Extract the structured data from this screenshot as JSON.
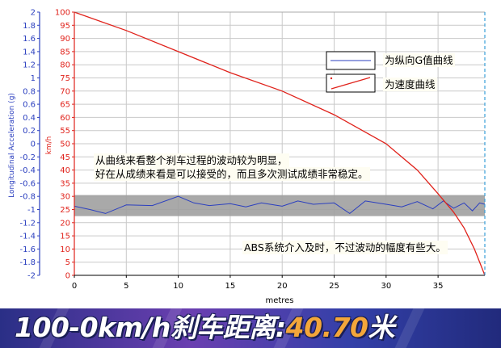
{
  "chart_data": {
    "type": "line",
    "xlabel": "metres",
    "y_left_label": "Longitudinal Acceleration (g)",
    "y_right_label": "km/h",
    "x_ticks": [
      0,
      5,
      10,
      15,
      20,
      25,
      30,
      35
    ],
    "xlim": [
      0,
      39.5
    ],
    "y_left_ticks": [
      "2",
      "1.8",
      "1.6",
      "1.4",
      "1.2",
      "1",
      "0.8",
      "0.6",
      "0.4",
      "0.2",
      "0",
      "-0.2",
      "-0.4",
      "-0.6",
      "-0.8",
      "-1",
      "-1.2",
      "-1.4",
      "-1.6",
      "-1.8",
      "-2"
    ],
    "y_left_lim": [
      -2,
      2
    ],
    "y_right_ticks": [
      "100",
      "95",
      "90",
      "85",
      "80",
      "75",
      "70",
      "65",
      "60",
      "55",
      "50",
      "45",
      "40",
      "35",
      "30",
      "25",
      "20",
      "15",
      "10",
      "5",
      "0"
    ],
    "y_right_lim": [
      0,
      100
    ],
    "band": {
      "y_from": -1.1,
      "y_to": -0.78,
      "color": "#a0a0a0"
    },
    "series": [
      {
        "name": "为纵向G值曲线",
        "axis": "left",
        "color": "#2b3fbf",
        "x": [
          0,
          1.5,
          3,
          5,
          7.5,
          10,
          11.5,
          13,
          15,
          16.5,
          18,
          20,
          21.5,
          23,
          25,
          26.5,
          28,
          30,
          31.5,
          33,
          34.5,
          35.5,
          36.5,
          37.5,
          38.3,
          39,
          39.5
        ],
        "y": [
          -0.95,
          -1.0,
          -1.06,
          -0.93,
          -0.94,
          -0.8,
          -0.9,
          -0.94,
          -0.91,
          -0.96,
          -0.9,
          -0.95,
          -0.87,
          -0.92,
          -0.9,
          -1.06,
          -0.87,
          -0.92,
          -0.96,
          -0.88,
          -0.99,
          -0.87,
          -0.98,
          -0.9,
          -1.02,
          -0.9,
          -0.92
        ]
      },
      {
        "name": "为速度曲线",
        "axis": "right",
        "color": "#e0221b",
        "x": [
          0,
          5,
          10,
          15,
          20,
          25,
          30,
          33,
          35,
          36.5,
          37.5,
          38.5,
          39,
          39.5
        ],
        "y": [
          100,
          93,
          85,
          77,
          70,
          61,
          50,
          40,
          31,
          24,
          18,
          10,
          5,
          0
        ]
      }
    ]
  },
  "annotations": {
    "line1": "从曲线来看整个刹车过程的波动较为明显，",
    "line2": "好在从成绩来看是可以接受的，而且多次测试成绩非常稳定。",
    "line3": "ABS系统介入及时，不过波动的幅度有些大。"
  },
  "legend": {
    "g_label": "为纵向G值曲线",
    "v_label": "为速度曲线"
  },
  "banner": {
    "prefix": "100-0km/h刹车距离:",
    "value": "40.70",
    "unit": "米"
  },
  "colors": {
    "left_axis": "#2b3fbf",
    "right_axis": "#e0221b",
    "banner_value": "#f3a63a"
  }
}
